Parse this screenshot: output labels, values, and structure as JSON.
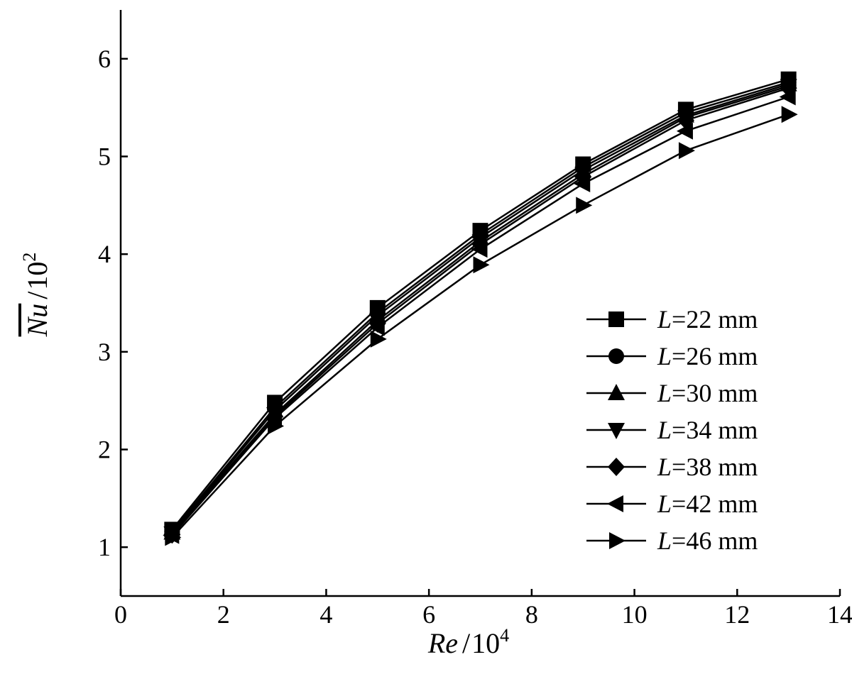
{
  "chart_data": {
    "type": "line",
    "xlabel": {
      "var": "Re",
      "sep": "/",
      "base": "10",
      "exp": "4"
    },
    "ylabel": {
      "var": "Nu",
      "sep": "/",
      "base": "10",
      "exp": "2"
    },
    "xlim": [
      0,
      14
    ],
    "ylim": [
      0.5,
      6.5
    ],
    "xticks": [
      "0",
      "2",
      "4",
      "6",
      "8",
      "10",
      "12",
      "14"
    ],
    "yticks": [
      "1",
      "2",
      "3",
      "4",
      "5",
      "6"
    ],
    "grid": false,
    "legend_position": "lower-right",
    "series": [
      {
        "name": "L=22 mm",
        "prefix": "L",
        "rest": "=22 mm",
        "marker": "square",
        "x": [
          1,
          3,
          5,
          7,
          9,
          11,
          13
        ],
        "y": [
          1.18,
          2.48,
          3.45,
          4.24,
          4.92,
          5.48,
          5.79
        ]
      },
      {
        "name": "L=26 mm",
        "prefix": "L",
        "rest": "=26 mm",
        "marker": "circle",
        "x": [
          1,
          3,
          5,
          7,
          9,
          11,
          13
        ],
        "y": [
          1.16,
          2.43,
          3.4,
          4.2,
          4.89,
          5.45,
          5.76
        ]
      },
      {
        "name": "L=30 mm",
        "prefix": "L",
        "rest": "=30 mm",
        "marker": "triangle-up",
        "x": [
          1,
          3,
          5,
          7,
          9,
          11,
          13
        ],
        "y": [
          1.15,
          2.4,
          3.37,
          4.17,
          4.86,
          5.42,
          5.74
        ]
      },
      {
        "name": "L=34 mm",
        "prefix": "L",
        "rest": "=34 mm",
        "marker": "triangle-down",
        "x": [
          1,
          3,
          5,
          7,
          9,
          11,
          13
        ],
        "y": [
          1.14,
          2.36,
          3.32,
          4.13,
          4.82,
          5.4,
          5.72
        ]
      },
      {
        "name": "L=38 mm",
        "prefix": "L",
        "rest": "=38 mm",
        "marker": "diamond",
        "x": [
          1,
          3,
          5,
          7,
          9,
          11,
          13
        ],
        "y": [
          1.13,
          2.34,
          3.29,
          4.1,
          4.79,
          5.37,
          5.7
        ]
      },
      {
        "name": "L=42 mm",
        "prefix": "L",
        "rest": "=42 mm",
        "marker": "triangle-left",
        "x": [
          1,
          3,
          5,
          7,
          9,
          11,
          13
        ],
        "y": [
          1.12,
          2.32,
          3.25,
          4.05,
          4.72,
          5.26,
          5.61
        ]
      },
      {
        "name": "L=46 mm",
        "prefix": "L",
        "rest": "=46 mm",
        "marker": "triangle-right",
        "x": [
          1,
          3,
          5,
          7,
          9,
          11,
          13
        ],
        "y": [
          1.1,
          2.24,
          3.13,
          3.89,
          4.5,
          5.06,
          5.43
        ]
      }
    ]
  }
}
